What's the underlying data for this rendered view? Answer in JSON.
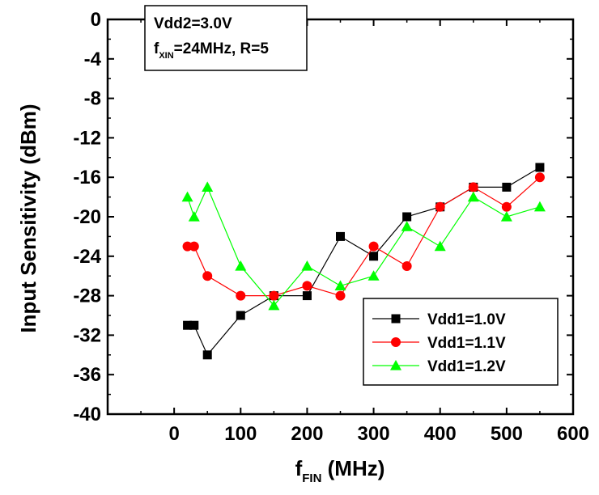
{
  "chart_data": {
    "type": "line",
    "xlabel": {
      "main": "f",
      "sub": "FIN",
      "rest": " (MHz)"
    },
    "ylabel": "Input Sensitivity (dBm)",
    "xlim": [
      -100,
      600
    ],
    "ylim": [
      -40,
      0
    ],
    "xticks": [
      0,
      100,
      200,
      300,
      400,
      500,
      600
    ],
    "yticks": [
      0,
      -4,
      -8,
      -12,
      -16,
      -20,
      -24,
      -28,
      -32,
      -36,
      -40
    ],
    "grid": false,
    "legend_position": "bottom-right",
    "annotation": {
      "line1": "Vdd2=3.0V",
      "line2_main": "f",
      "line2_sub": "XIN",
      "line2_rest": "=24MHz, R=5"
    },
    "series": [
      {
        "name": "Vdd1=1.0V",
        "color": "#000000",
        "marker": "square",
        "x": [
          20,
          30,
          50,
          100,
          150,
          200,
          250,
          300,
          350,
          400,
          450,
          500,
          550
        ],
        "y": [
          -31,
          -31,
          -34,
          -30,
          -28,
          -28,
          -22,
          -24,
          -20,
          -19,
          -17,
          -17,
          -15
        ]
      },
      {
        "name": "Vdd1=1.1V",
        "color": "#ff0000",
        "marker": "circle",
        "x": [
          20,
          30,
          50,
          100,
          150,
          200,
          250,
          300,
          350,
          400,
          450,
          500,
          550
        ],
        "y": [
          -23,
          -23,
          -26,
          -28,
          -28,
          -27,
          -28,
          -23,
          -25,
          -19,
          -17,
          -19,
          -16
        ]
      },
      {
        "name": "Vdd1=1.2V",
        "color": "#00ff00",
        "marker": "triangle",
        "x": [
          20,
          30,
          50,
          100,
          150,
          200,
          250,
          300,
          350,
          400,
          450,
          500,
          550
        ],
        "y": [
          -18,
          -20,
          -17,
          -25,
          -29,
          -25,
          -27,
          -26,
          -21,
          -23,
          -18,
          -20,
          -19
        ]
      }
    ]
  }
}
